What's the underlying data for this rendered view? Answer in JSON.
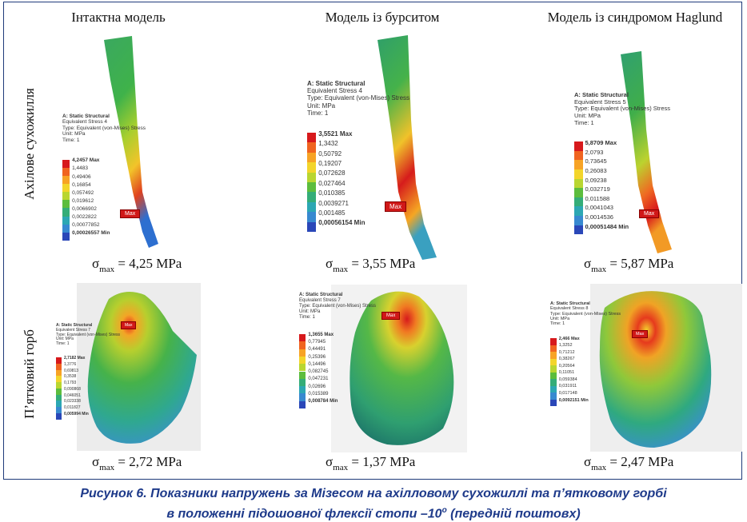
{
  "columns": [
    "Інтактна модель",
    "Модель із бурситом",
    "Модель із синдромом Haglund"
  ],
  "rows": [
    "Ахілове сухожилля",
    "П’ятковий горб"
  ],
  "sigma_symbol": "σ",
  "sigma_sub": "max",
  "sigma_values": [
    "= 4,25 MPa",
    "= 3,55 MPa",
    "= 5,87 MPa",
    "= 2,72 MPa",
    "= 1,37 MPa",
    "= 2,47 MPa"
  ],
  "legend_header": {
    "title": "A: Static Structural",
    "type": "Type: Equivalent (von-Mises) Stress",
    "unit": "Unit: MPa",
    "time": "Time: 1"
  },
  "legends": [
    {
      "name": "Equivalent Stress 4",
      "values": [
        "4,2457 Max",
        "1,4483",
        "0,49406",
        "0,16854",
        "0,057492",
        "0,019612",
        "0,0066902",
        "0,0022822",
        "0,00077852",
        "0,00026557 Min"
      ]
    },
    {
      "name": "Equivalent Stress 4",
      "values": [
        "3,5521 Max",
        "1,3432",
        "0,50792",
        "0,19207",
        "0,072628",
        "0,027464",
        "0,010385",
        "0,0039271",
        "0,001485",
        "0,00056154 Min"
      ]
    },
    {
      "name": "Equivalent Stress 5",
      "values": [
        "5,8709 Max",
        "2,0793",
        "0,73645",
        "0,26083",
        "0,09238",
        "0,032719",
        "0,011588",
        "0,0041043",
        "0,0014536",
        "0,00051484 Min"
      ]
    },
    {
      "name": "Equivalent Stress 7",
      "values": [
        "2,7182 Max",
        "1,3776",
        "0,69813",
        "0,3538",
        "0,1793",
        "0,090868",
        "0,046051",
        "0,023338",
        "0,011827",
        "0,005994 Min"
      ]
    },
    {
      "name": "Equivalent Stress 7",
      "values": [
        "1,3655 Max",
        "0,77945",
        "0,44491",
        "0,25396",
        "0,14496",
        "0,082745",
        "0,047231",
        "0,02696",
        "0,015389",
        "0,008784 Min"
      ]
    },
    {
      "name": "Equivalent Stress 8",
      "values": [
        "2,466 Max",
        "1,3252",
        "0,71212",
        "0,38267",
        "0,20564",
        "0,11051",
        "0,059384",
        "0,031911",
        "0,017148",
        "0,0092151 Min"
      ]
    }
  ],
  "max_tag": "Max",
  "legend_colors": [
    "#d7191c",
    "#f06420",
    "#f7a325",
    "#f3d52b",
    "#b9d631",
    "#5cbd3d",
    "#34ad78",
    "#2ca7b3",
    "#3789d0",
    "#2a47b8"
  ],
  "caption": {
    "line1": "Рисунок 6. Показники напружень за Мізесом на ахілловому сухожиллі та п’ятковому горбі",
    "line2_a": "в положенні підошовної флексії стопи –10",
    "line2_sup": "о",
    "line2_b": " (передній поштовх)"
  }
}
